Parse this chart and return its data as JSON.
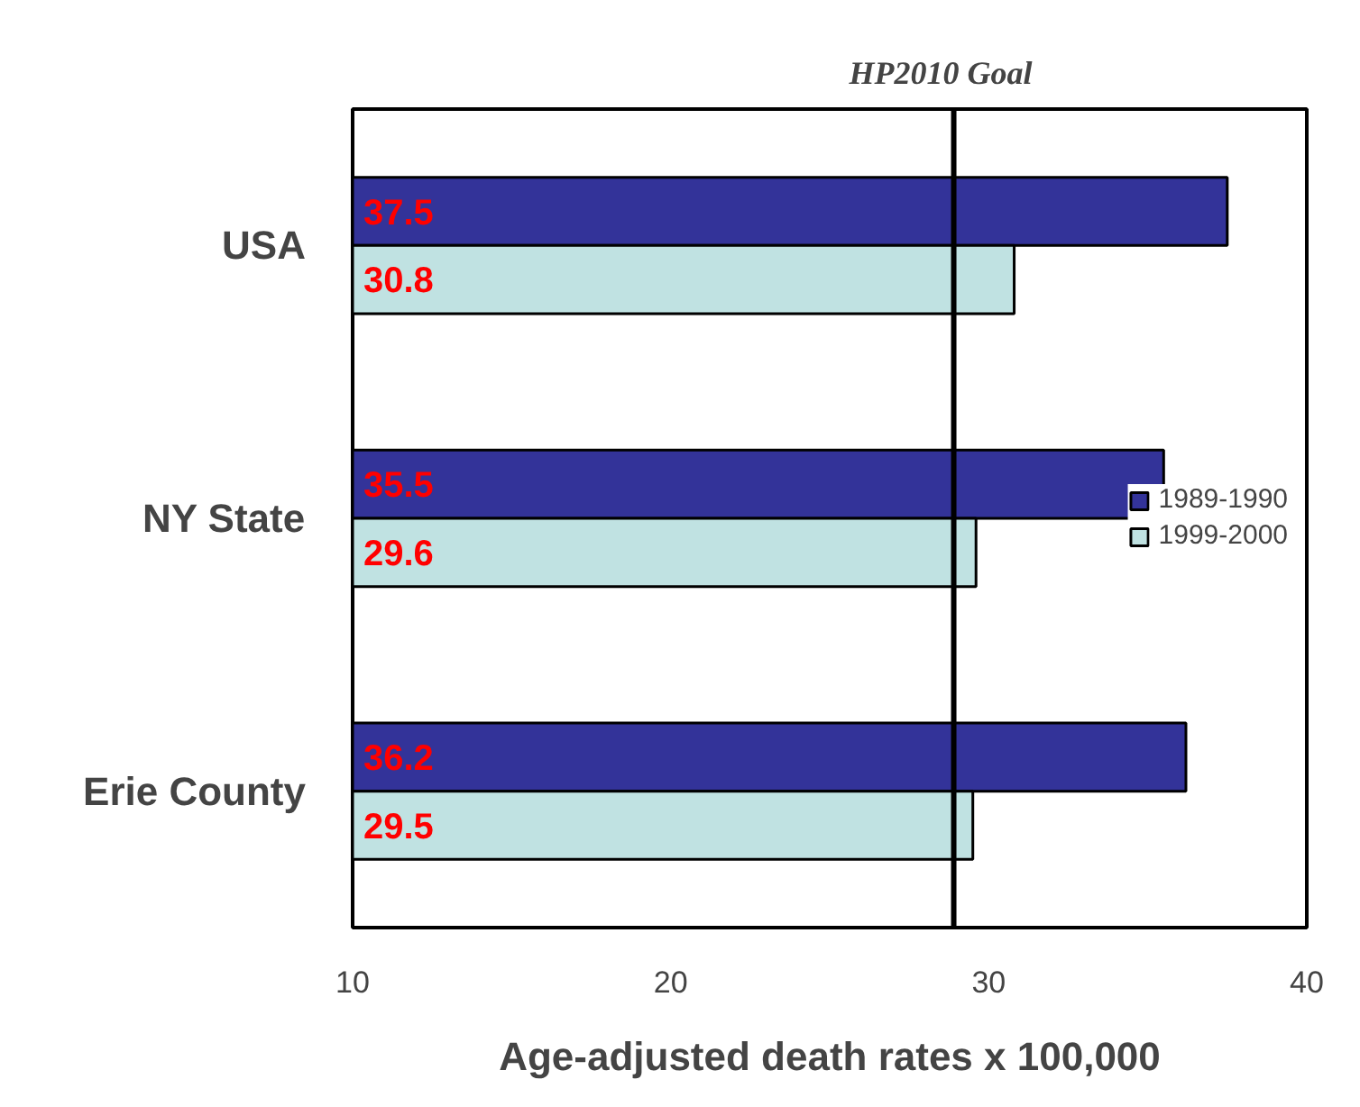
{
  "chart_data": {
    "type": "bar",
    "orientation": "horizontal",
    "categories": [
      "USA",
      "NY State",
      "Erie County"
    ],
    "series": [
      {
        "name": "1989-1990",
        "color": "#333399",
        "values": [
          37.5,
          35.5,
          36.2
        ]
      },
      {
        "name": "1999-2000",
        "color": "#c0e2e2",
        "values": [
          30.8,
          29.6,
          29.5
        ]
      }
    ],
    "xlim": [
      10,
      40
    ],
    "xticks": [
      10,
      20,
      30,
      40
    ],
    "xlabel": "Age-adjusted death rates x 100,000",
    "ref_lines": [
      {
        "axis": "x",
        "value": 28.9,
        "label": "HP2010 Goal",
        "color": "#000000"
      }
    ],
    "data_labels": true,
    "legend": "right",
    "grid": false
  }
}
